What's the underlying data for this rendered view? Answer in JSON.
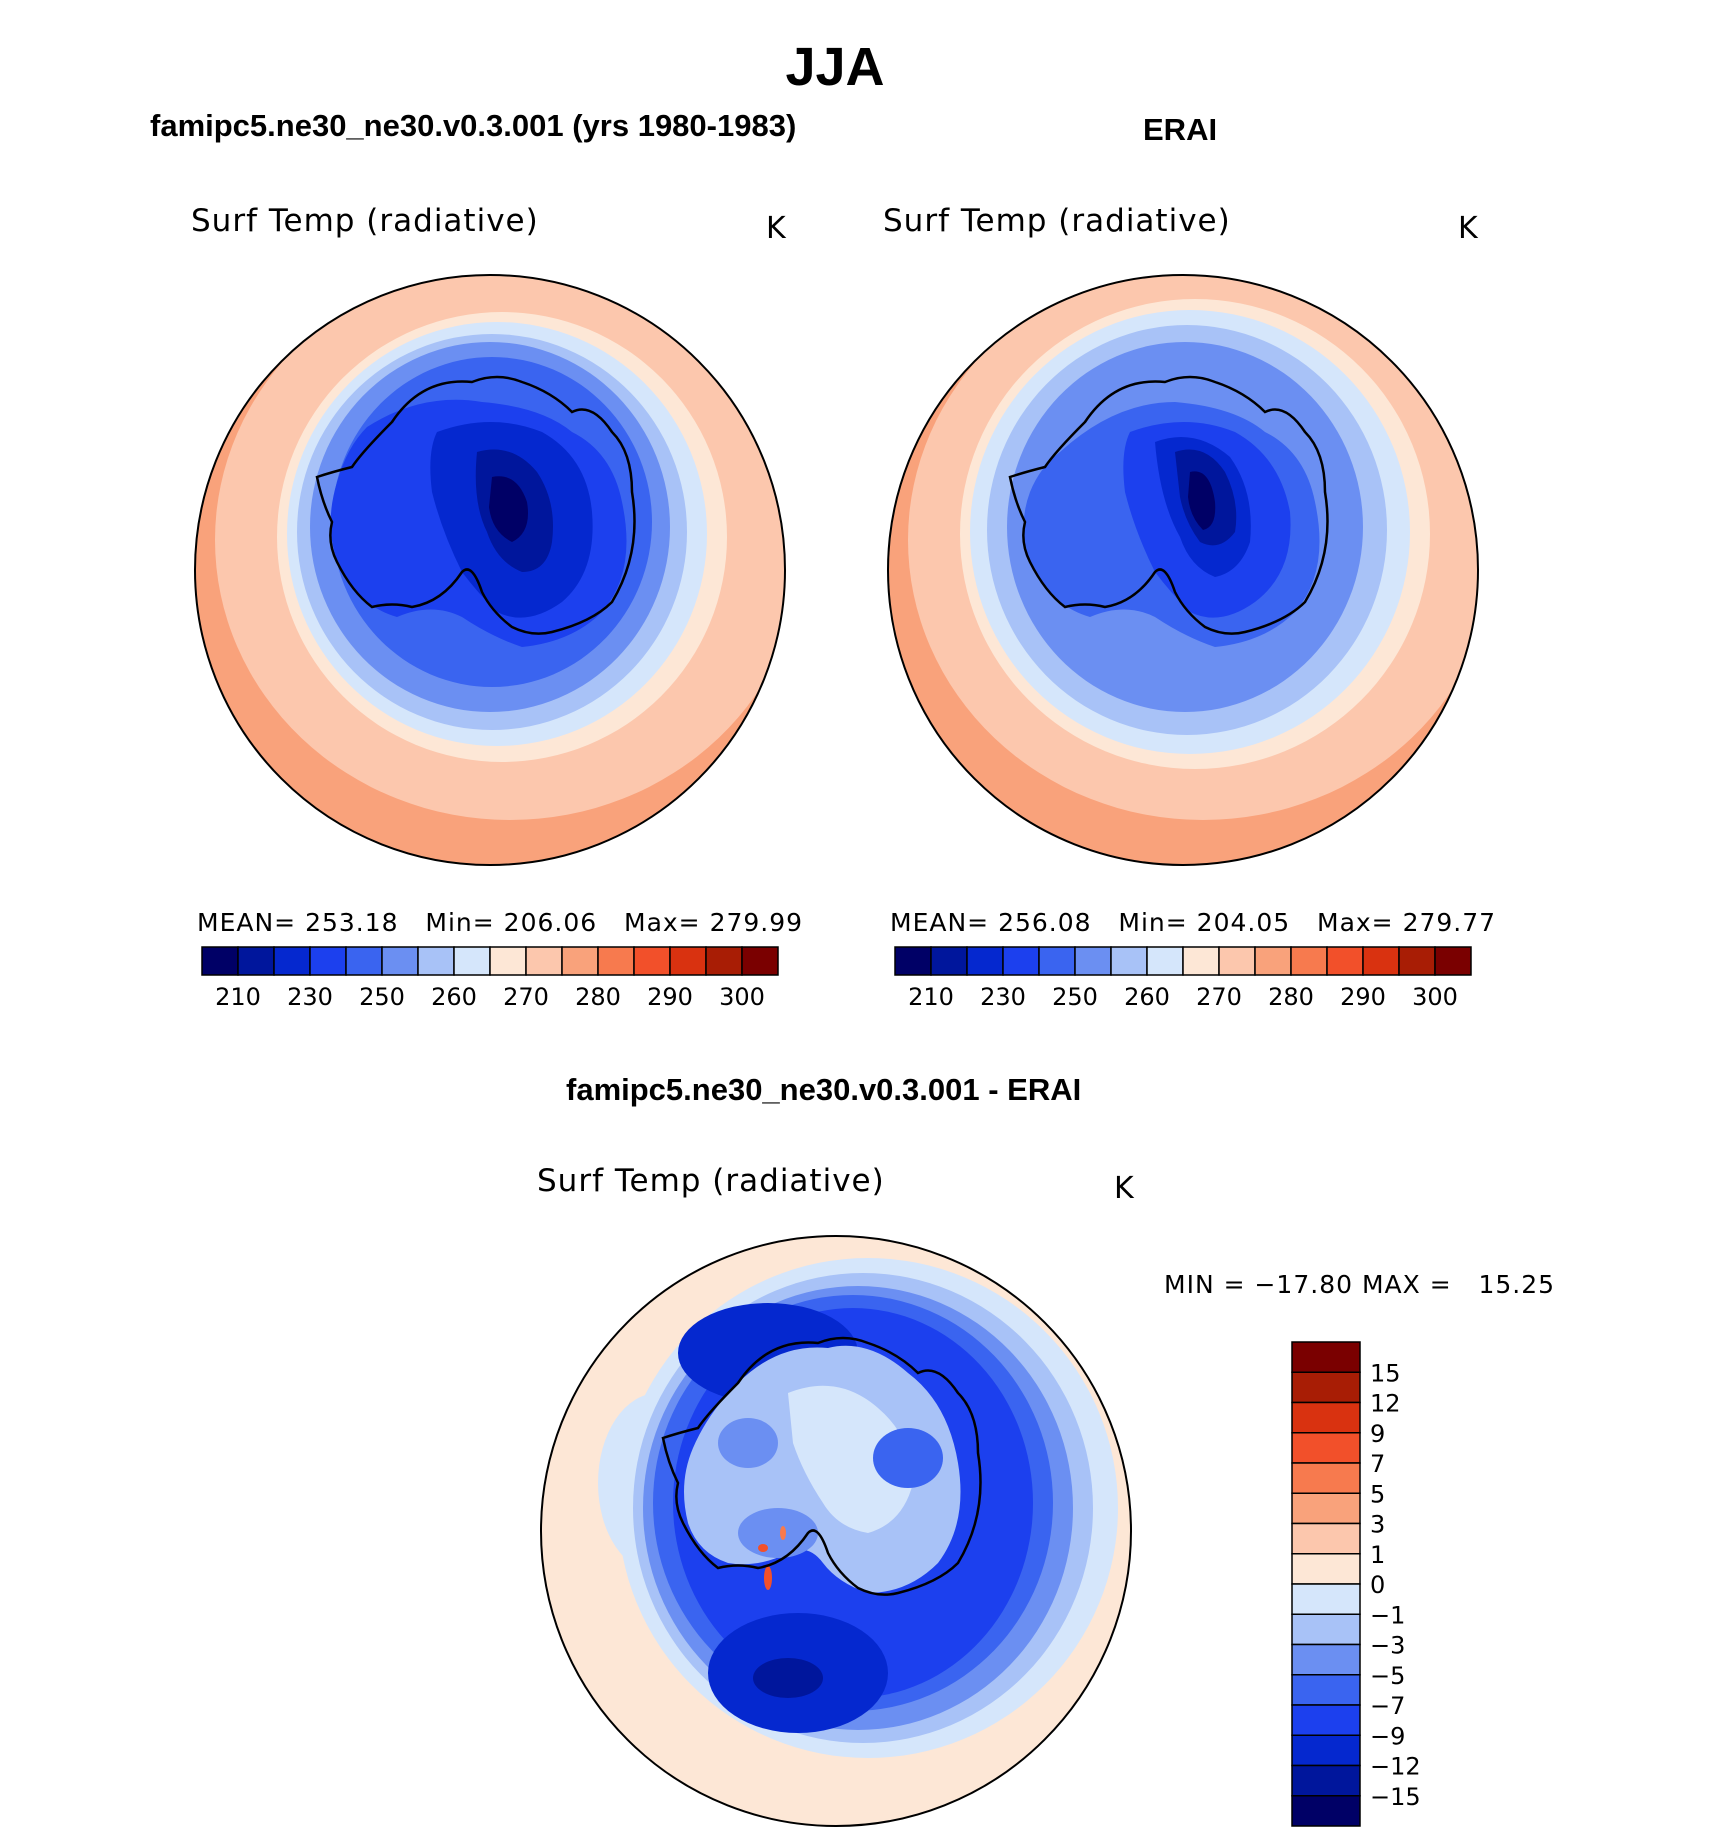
{
  "title": "JJA",
  "panels": [
    {
      "heading": "famipc5.ne30_ne30.v0.3.001 (yrs 1980-1983)",
      "variable": "Surf Temp (radiative)",
      "units": "K",
      "stats": {
        "mean_label": "MEAN=",
        "mean": "253.18",
        "min_label": "Min=",
        "min": "206.06",
        "max_label": "Max=",
        "max": "279.99"
      }
    },
    {
      "heading": "ERAI",
      "variable": "Surf Temp (radiative)",
      "units": "K",
      "stats": {
        "mean_label": "MEAN=",
        "mean": "256.08",
        "min_label": "Min=",
        "min": "204.05",
        "max_label": "Max=",
        "max": "279.77"
      }
    }
  ],
  "abs_colorbar": {
    "colors": [
      "#000066",
      "#00169c",
      "#0528cf",
      "#1c40ee",
      "#3a64f0",
      "#6b8ff2",
      "#a8c2f7",
      "#d5e6fb",
      "#fde7d6",
      "#fcc7ad",
      "#f9a27b",
      "#f77a4e",
      "#f2502a",
      "#d93210",
      "#a81d05",
      "#7a0000"
    ],
    "labels": [
      "210",
      "230",
      "250",
      "260",
      "270",
      "280",
      "290",
      "300"
    ]
  },
  "diff_panel": {
    "heading": "famipc5.ne30_ne30.v0.3.001 - ERAI",
    "variable": "Surf Temp (radiative)",
    "units": "K",
    "minmax_text": "MIN = −17.80 MAX =   15.25"
  },
  "diff_colorbar": {
    "colors": [
      "#7a0000",
      "#a81d05",
      "#d93210",
      "#f2502a",
      "#f77a4e",
      "#f9a27b",
      "#fcc7ad",
      "#fde7d6",
      "#d5e6fb",
      "#a8c2f7",
      "#6b8ff2",
      "#3a64f0",
      "#1c40ee",
      "#0528cf",
      "#00169c",
      "#000066"
    ],
    "labels": [
      "15",
      "12",
      "9",
      "7",
      "5",
      "3",
      "1",
      "0",
      "−1",
      "−3",
      "−5",
      "−7",
      "−9",
      "−12",
      "−15"
    ]
  }
}
